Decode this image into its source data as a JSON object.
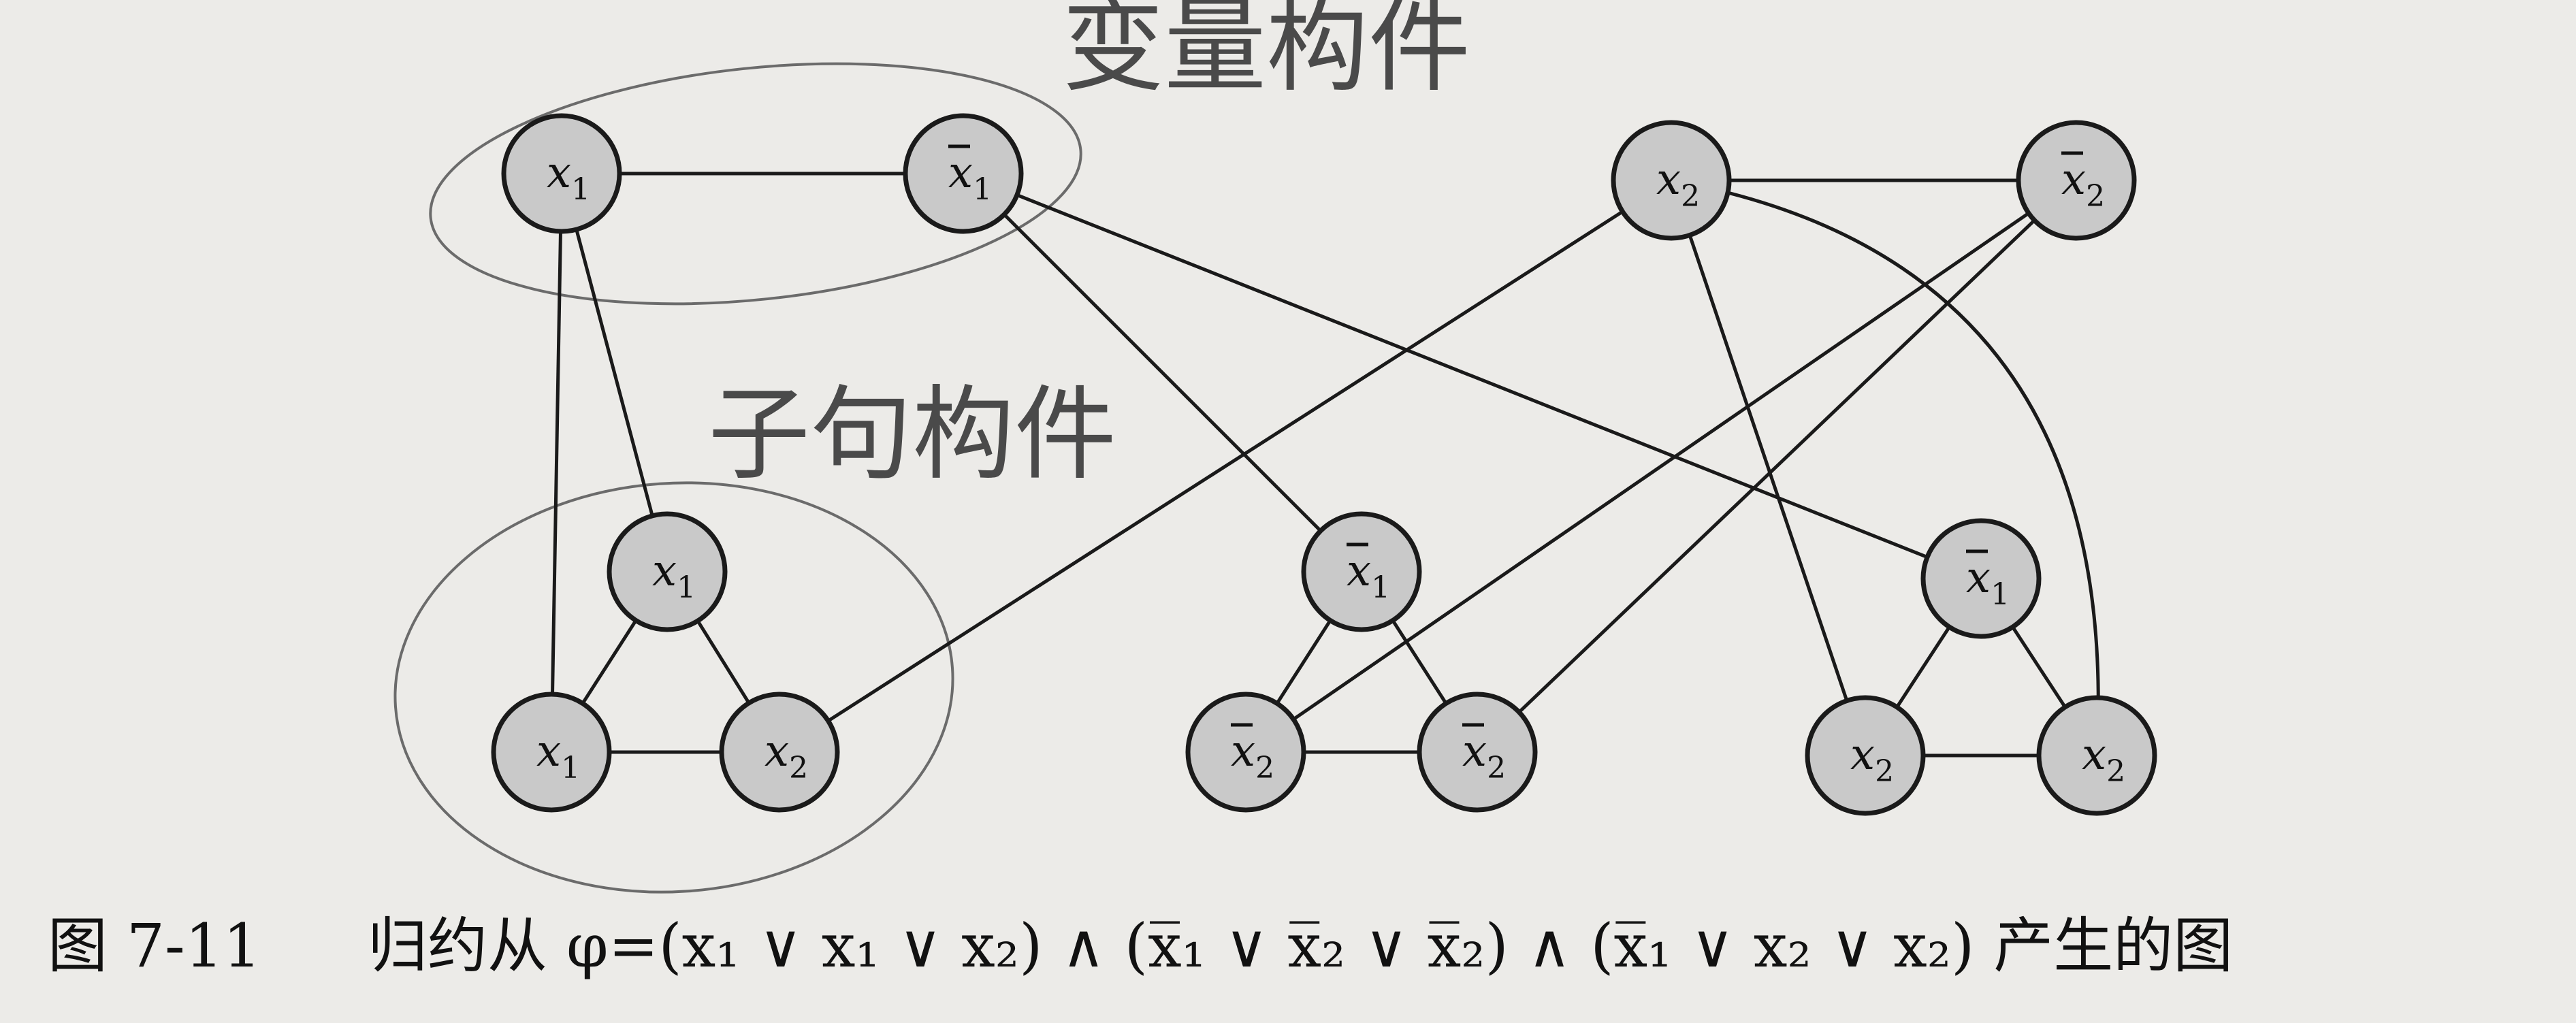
{
  "annotations": {
    "variable_gadget": "变量构件",
    "clause_gadget": "子句构件"
  },
  "caption": {
    "label": "图 7-11",
    "text": "归约从 φ=(x₁ ∨ x₁ ∨ x₂) ∧ (x̅₁ ∨ x̅₂ ∨ x̅₂) ∧ (x̅₁ ∨ x₂ ∨ x₂) 产生的图"
  },
  "nodes": [
    {
      "id": "v_x1",
      "var": "x",
      "sub": "1",
      "neg": false
    },
    {
      "id": "v_nx1",
      "var": "x",
      "sub": "1",
      "neg": true
    },
    {
      "id": "v_x2",
      "var": "x",
      "sub": "2",
      "neg": false
    },
    {
      "id": "v_nx2",
      "var": "x",
      "sub": "2",
      "neg": true
    },
    {
      "id": "c1_top",
      "var": "x",
      "sub": "1",
      "neg": false
    },
    {
      "id": "c1_bl",
      "var": "x",
      "sub": "1",
      "neg": false
    },
    {
      "id": "c1_br",
      "var": "x",
      "sub": "2",
      "neg": false
    },
    {
      "id": "c2_top",
      "var": "x",
      "sub": "1",
      "neg": true
    },
    {
      "id": "c2_bl",
      "var": "x",
      "sub": "2",
      "neg": true
    },
    {
      "id": "c2_br",
      "var": "x",
      "sub": "2",
      "neg": true
    },
    {
      "id": "c3_top",
      "var": "x",
      "sub": "1",
      "neg": true
    },
    {
      "id": "c3_bl",
      "var": "x",
      "sub": "2",
      "neg": false
    },
    {
      "id": "c3_br",
      "var": "x",
      "sub": "2",
      "neg": false
    }
  ],
  "edges": [
    [
      "v_x1",
      "v_nx1"
    ],
    [
      "v_x2",
      "v_nx2"
    ],
    [
      "c1_top",
      "c1_bl"
    ],
    [
      "c1_top",
      "c1_br"
    ],
    [
      "c1_bl",
      "c1_br"
    ],
    [
      "c2_top",
      "c2_bl"
    ],
    [
      "c2_top",
      "c2_br"
    ],
    [
      "c2_bl",
      "c2_br"
    ],
    [
      "c3_top",
      "c3_bl"
    ],
    [
      "c3_top",
      "c3_br"
    ],
    [
      "c3_bl",
      "c3_br"
    ],
    [
      "v_x1",
      "c1_top"
    ],
    [
      "v_x1",
      "c1_bl"
    ],
    [
      "v_x2",
      "c1_br"
    ],
    [
      "v_nx1",
      "c2_top"
    ],
    [
      "v_nx2",
      "c2_bl"
    ],
    [
      "v_nx2",
      "c2_br"
    ],
    [
      "v_nx1",
      "c3_top"
    ],
    [
      "v_x2",
      "c3_bl"
    ],
    [
      "v_x2",
      "c3_br"
    ]
  ]
}
